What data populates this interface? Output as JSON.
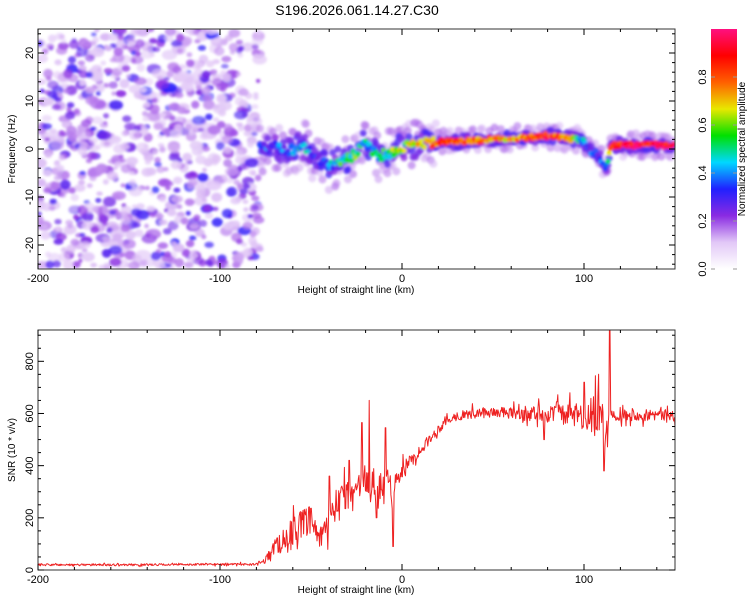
{
  "figure_title": "S196.2026.061.14.27.C30",
  "chart_data": [
    {
      "type": "heatmap",
      "title": "S196.2026.061.14.27.C30",
      "xlabel": "Height of straight line (km)",
      "ylabel": "Frequency (Hz)",
      "xlim": [
        -200,
        150
      ],
      "ylim": [
        -25,
        25
      ],
      "xticks": [
        -200,
        -100,
        0,
        100
      ],
      "xticks_minor_step": 20,
      "yticks": [
        -20,
        -10,
        0,
        10,
        20
      ],
      "yticks_minor_step": 2,
      "colorbar": {
        "label": "Normalized spectral amplitude",
        "range": [
          0,
          1
        ],
        "ticks": [
          0.0,
          0.2,
          0.4,
          0.6,
          0.8
        ],
        "colormap": "rainbow (white-violet-blue-cyan-green-yellow-red-magenta)",
        "stops": [
          "#ffffff",
          "#e2c8f7",
          "#8a2be2",
          "#2020ff",
          "#00d8ff",
          "#00e000",
          "#e8e800",
          "#ff6000",
          "#ff0000",
          "#ff1080"
        ]
      },
      "noise_region": {
        "x_range": [
          -200,
          -78
        ],
        "amplitude_range": [
          0.02,
          0.18
        ]
      },
      "ridge": {
        "description": "Doppler ridge frequency vs height",
        "x": [
          -78,
          -70,
          -62,
          -55,
          -50,
          -45,
          -40,
          -35,
          -30,
          -25,
          -20,
          -17,
          -12,
          -5,
          0,
          10,
          20,
          30,
          40,
          50,
          60,
          70,
          80,
          90,
          95,
          100,
          104,
          108,
          112,
          115,
          130,
          150
        ],
        "freq": [
          0,
          0.5,
          -0.5,
          1,
          -1,
          -2.5,
          -3.5,
          -2.5,
          -2,
          -1,
          1.5,
          -0.5,
          -1.5,
          -0.5,
          0.5,
          1,
          1.5,
          1.5,
          1.8,
          2,
          2.2,
          2.5,
          2.8,
          2.3,
          2,
          1.5,
          -0.5,
          -1.2,
          -4,
          0.8,
          0.8,
          0.8
        ],
        "amplitude": [
          0.3,
          0.35,
          0.3,
          0.45,
          0.35,
          0.3,
          0.35,
          0.5,
          0.5,
          0.55,
          0.45,
          0.45,
          0.5,
          0.55,
          0.6,
          0.7,
          0.8,
          0.85,
          0.82,
          0.75,
          0.7,
          0.85,
          0.88,
          0.75,
          0.6,
          0.4,
          0.35,
          0.3,
          0.3,
          0.9,
          0.92,
          0.9
        ]
      }
    },
    {
      "type": "line",
      "xlabel": "Height of straight line (km)",
      "ylabel": "SNR (10 * v/v)",
      "xlim": [
        -200,
        150
      ],
      "ylim": [
        0,
        920
      ],
      "xticks": [
        -200,
        -100,
        0,
        100
      ],
      "xticks_minor_step": 20,
      "yticks": [
        0,
        200,
        400,
        600,
        800
      ],
      "yticks_minor_step": 50,
      "color": "#ee2222",
      "series": [
        {
          "name": "SNR",
          "x": [
            -200,
            -150,
            -100,
            -80,
            -75,
            -70,
            -65,
            -60,
            -55,
            -50,
            -45,
            -40,
            -35,
            -30,
            -25,
            -20,
            -15,
            -10,
            -5,
            0,
            5,
            10,
            15,
            20,
            25,
            30,
            40,
            50,
            60,
            70,
            80,
            90,
            100,
            105,
            110,
            112,
            115,
            120,
            130,
            140,
            150
          ],
          "mean": [
            20,
            20,
            22,
            22,
            40,
            90,
            110,
            150,
            170,
            190,
            120,
            170,
            260,
            280,
            300,
            340,
            300,
            310,
            320,
            380,
            420,
            460,
            500,
            540,
            575,
            590,
            600,
            605,
            600,
            600,
            600,
            595,
            590,
            590,
            575,
            520,
            600,
            595,
            595,
            595,
            590
          ],
          "noise_amplitude": [
            8,
            8,
            8,
            8,
            30,
            60,
            90,
            110,
            120,
            110,
            80,
            120,
            150,
            140,
            130,
            140,
            150,
            130,
            100,
            60,
            50,
            40,
            40,
            35,
            35,
            35,
            40,
            40,
            45,
            60,
            70,
            80,
            120,
            150,
            200,
            200,
            50,
            45,
            45,
            45,
            45
          ],
          "peaks": [
            {
              "x": -40,
              "y": 360
            },
            {
              "x": -29,
              "y": 420
            },
            {
              "x": -22,
              "y": 565
            },
            {
              "x": -18,
              "y": 650
            },
            {
              "x": -9,
              "y": 545
            },
            {
              "x": 85,
              "y": 645
            },
            {
              "x": 100,
              "y": 720
            },
            {
              "x": 108,
              "y": 750
            },
            {
              "x": 114,
              "y": 920
            }
          ],
          "troughs": [
            {
              "x": -14,
              "y": 200
            },
            {
              "x": -5,
              "y": 90
            },
            {
              "x": 78,
              "y": 500
            },
            {
              "x": 111,
              "y": 380
            }
          ]
        }
      ]
    }
  ]
}
